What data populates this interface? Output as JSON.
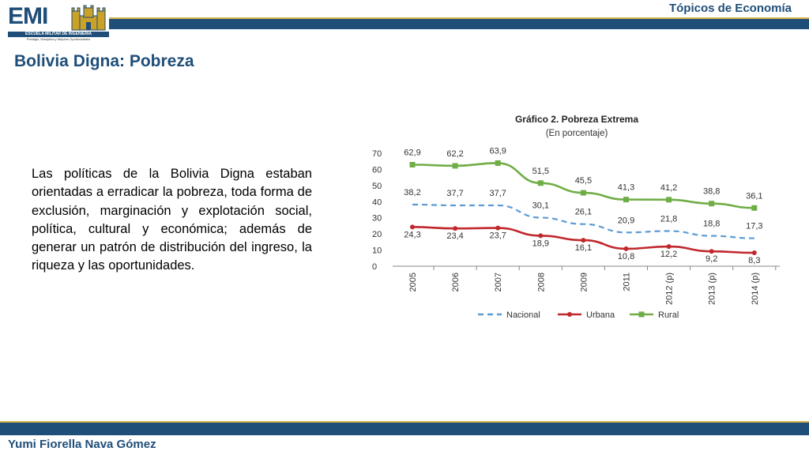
{
  "header": {
    "logo_text": "EMI",
    "logo_band": "ESCUELA MILITAR DE INGENIERIA",
    "logo_motto": "Prestigio, Disciplina y Mejores Oportunidades",
    "section": "Tópicos de Economía"
  },
  "slide": {
    "title": "Bolivia Digna: Pobreza",
    "body": "Las políticas de la Bolivia Digna estaban orientadas a erradicar la pobreza, toda forma de exclusión, marginación y explotación social, política, cultural y económica; además de generar un patrón de distribución del ingreso, la riqueza y las oportunidades."
  },
  "footer": {
    "author": "Yumi Fiorella Nava Gómez"
  },
  "chart_data": {
    "type": "line",
    "title": "Gráfico 2. Pobreza Extrema",
    "subtitle": "(En porcentaje)",
    "categories": [
      "2005",
      "2006",
      "2007",
      "2008",
      "2009",
      "2011",
      "2012 (p)",
      "2013 (p)",
      "2014 (p)"
    ],
    "ylim": [
      0,
      70
    ],
    "yticks": [
      0,
      10,
      20,
      30,
      40,
      50,
      60,
      70
    ],
    "legend_position": "bottom",
    "series": [
      {
        "name": "Nacional",
        "values": [
          38.2,
          37.7,
          37.7,
          30.1,
          26.1,
          20.9,
          21.8,
          18.8,
          17.3
        ],
        "labels": [
          "38,2",
          "37,7",
          "37,7",
          "30,1",
          "26,1",
          "20,9",
          "21,8",
          "18,8",
          "17,3"
        ],
        "color": "#5b9bd5",
        "style": "dashed",
        "marker": "none"
      },
      {
        "name": "Urbana",
        "values": [
          24.3,
          23.4,
          23.7,
          18.9,
          16.1,
          10.8,
          12.2,
          9.2,
          8.3
        ],
        "labels": [
          "24,3",
          "23,4",
          "23,7",
          "18,9",
          "16,1",
          "10,8",
          "12,2",
          "9,2",
          "8,3"
        ],
        "color": "#c0282d",
        "style": "solid",
        "marker": "circle"
      },
      {
        "name": "Rural",
        "values": [
          62.9,
          62.2,
          63.9,
          51.5,
          45.5,
          41.3,
          41.2,
          38.8,
          36.1
        ],
        "labels": [
          "62,9",
          "62,2",
          "63,9",
          "51,5",
          "45,5",
          "41,3",
          "41,2",
          "38,8",
          "36,1"
        ],
        "color": "#70ad47",
        "style": "solid",
        "marker": "square"
      }
    ]
  }
}
